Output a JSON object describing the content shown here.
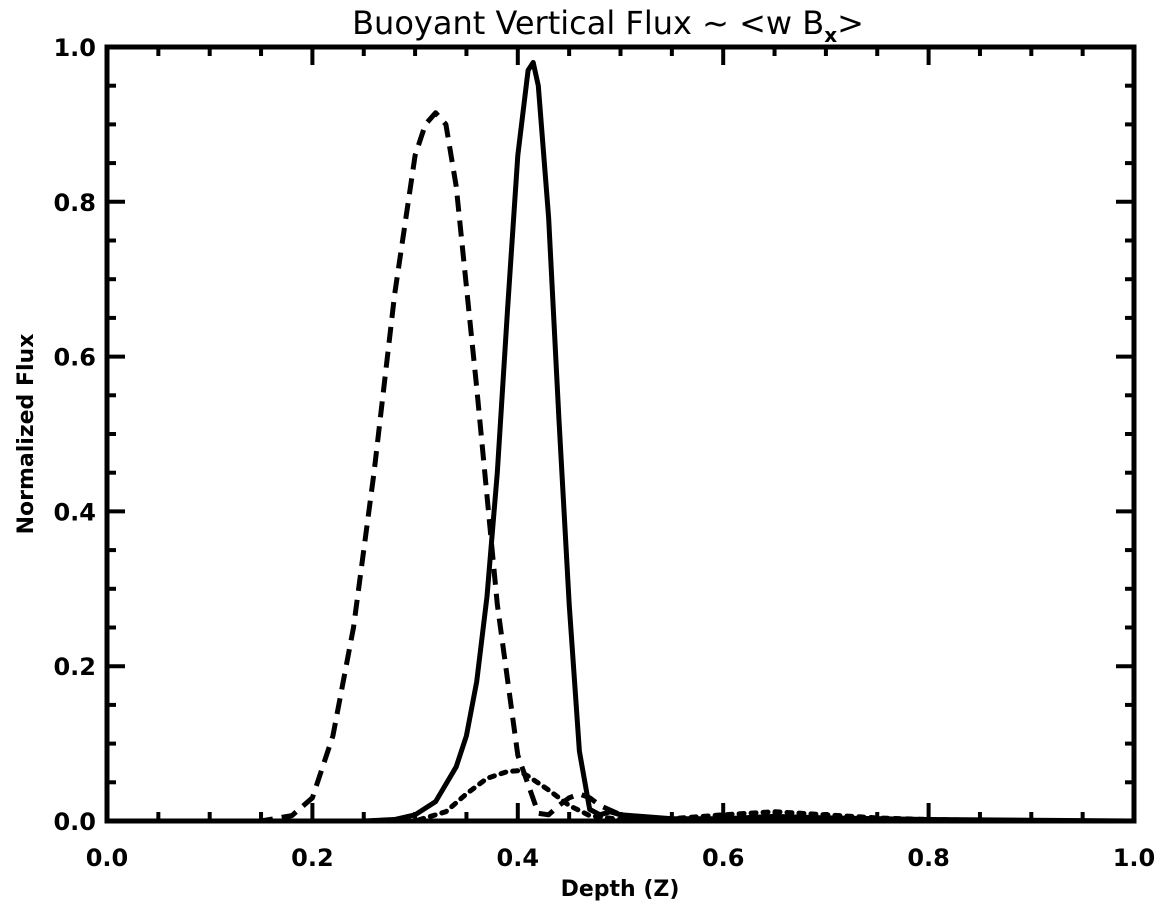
{
  "chart_data": {
    "type": "line",
    "title": {
      "main": "Buoyant Vertical Flux ~ <w B",
      "subscript": "x",
      "suffix": ">"
    },
    "xlabel": "Depth (Z)",
    "ylabel": "Normalized Flux",
    "xlim": [
      0.0,
      1.0
    ],
    "ylim": [
      0.0,
      1.0
    ],
    "x_ticks": [
      "0.0",
      "0.2",
      "0.4",
      "0.6",
      "0.8",
      "1.0"
    ],
    "y_ticks": [
      "0.0",
      "0.2",
      "0.4",
      "0.6",
      "0.8",
      "1.0"
    ],
    "grid": false,
    "legend": "none",
    "colors": {
      "line": "#000000",
      "background": "#ffffff"
    },
    "series": [
      {
        "style": "solid",
        "x": [
          0.0,
          0.25,
          0.28,
          0.3,
          0.32,
          0.34,
          0.35,
          0.36,
          0.37,
          0.38,
          0.39,
          0.4,
          0.41,
          0.415,
          0.42,
          0.43,
          0.44,
          0.45,
          0.46,
          0.47,
          0.48,
          0.49,
          0.5,
          0.55,
          0.6,
          0.65,
          0.7,
          0.8,
          0.9,
          1.0
        ],
        "y": [
          0.0,
          0.0,
          0.002,
          0.008,
          0.025,
          0.07,
          0.11,
          0.18,
          0.29,
          0.45,
          0.66,
          0.86,
          0.97,
          0.98,
          0.95,
          0.78,
          0.52,
          0.28,
          0.09,
          0.015,
          0.008,
          0.012,
          0.008,
          0.003,
          0.003,
          0.006,
          0.004,
          0.002,
          0.001,
          0.0
        ]
      },
      {
        "style": "dashed",
        "x": [
          0.0,
          0.15,
          0.18,
          0.2,
          0.22,
          0.24,
          0.26,
          0.28,
          0.3,
          0.31,
          0.32,
          0.33,
          0.34,
          0.36,
          0.38,
          0.4,
          0.42,
          0.43,
          0.44,
          0.45,
          0.46,
          0.47,
          0.48,
          0.5,
          0.52,
          0.55,
          0.6,
          0.7,
          0.8,
          1.0
        ],
        "y": [
          0.0,
          0.0,
          0.007,
          0.03,
          0.11,
          0.25,
          0.45,
          0.68,
          0.86,
          0.9,
          0.915,
          0.9,
          0.82,
          0.56,
          0.28,
          0.085,
          0.01,
          0.008,
          0.02,
          0.03,
          0.035,
          0.03,
          0.02,
          0.008,
          0.003,
          0.001,
          0.001,
          0.001,
          0.0,
          0.0
        ]
      },
      {
        "style": "dotted",
        "x": [
          0.0,
          0.3,
          0.33,
          0.35,
          0.37,
          0.39,
          0.4,
          0.41,
          0.43,
          0.45,
          0.47,
          0.5,
          0.52,
          0.55,
          0.6,
          0.65,
          0.7,
          0.75,
          0.8,
          0.9,
          1.0
        ],
        "y": [
          0.0,
          0.0,
          0.012,
          0.035,
          0.055,
          0.064,
          0.065,
          0.058,
          0.04,
          0.02,
          0.007,
          0.002,
          0.002,
          0.003,
          0.008,
          0.012,
          0.008,
          0.004,
          0.002,
          0.0,
          0.0
        ]
      }
    ]
  }
}
